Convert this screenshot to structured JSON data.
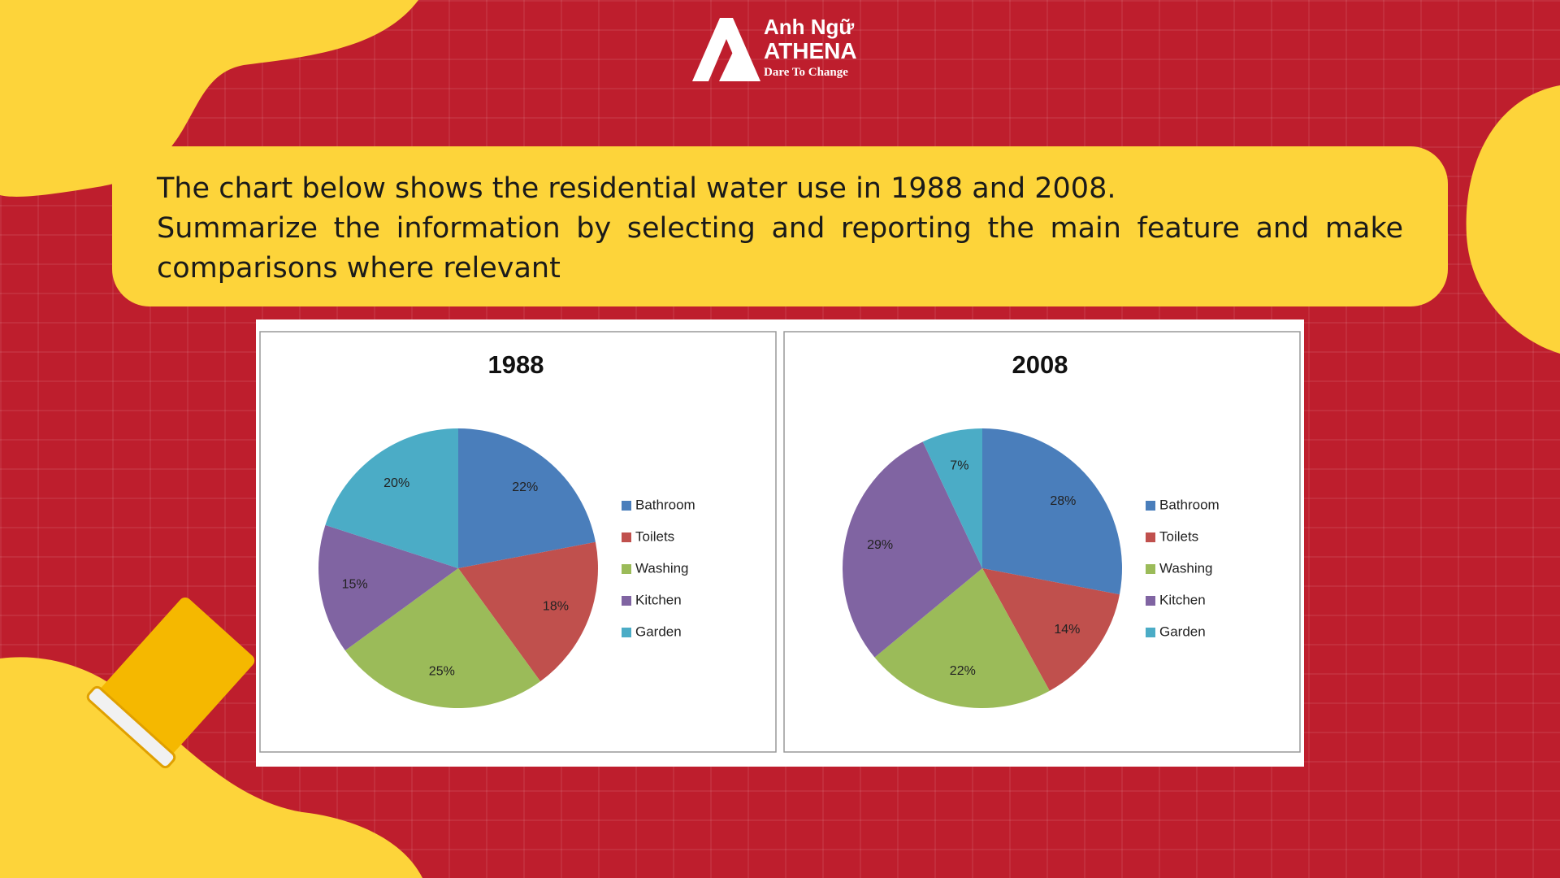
{
  "brand": {
    "name": "Anh Ngữ",
    "name2": "ATHENA",
    "tagline": "Dare To Change"
  },
  "prompt": {
    "line1": "The chart below shows the residential water use in 1988 and 2008.",
    "line2": "Summarize the information by selecting and reporting the main feature and make comparisons where relevant"
  },
  "chart_data": [
    {
      "type": "pie",
      "title": "1988",
      "categories": [
        "Bathroom",
        "Toilets",
        "Washing",
        "Kitchen",
        "Garden"
      ],
      "values": [
        22,
        18,
        25,
        15,
        20
      ],
      "value_labels": [
        "22%",
        "18%",
        "25%",
        "15%",
        "20%"
      ],
      "colors": [
        "#4a7ebb",
        "#c0504d",
        "#9bbb59",
        "#8064a2",
        "#4bacc6"
      ]
    },
    {
      "type": "pie",
      "title": "2008",
      "categories": [
        "Bathroom",
        "Toilets",
        "Washing",
        "Kitchen",
        "Garden"
      ],
      "values": [
        28,
        14,
        22,
        29,
        7
      ],
      "value_labels": [
        "28%",
        "14%",
        "22%",
        "29%",
        "7%"
      ],
      "colors": [
        "#4a7ebb",
        "#c0504d",
        "#9bbb59",
        "#8064a2",
        "#4bacc6"
      ]
    }
  ]
}
